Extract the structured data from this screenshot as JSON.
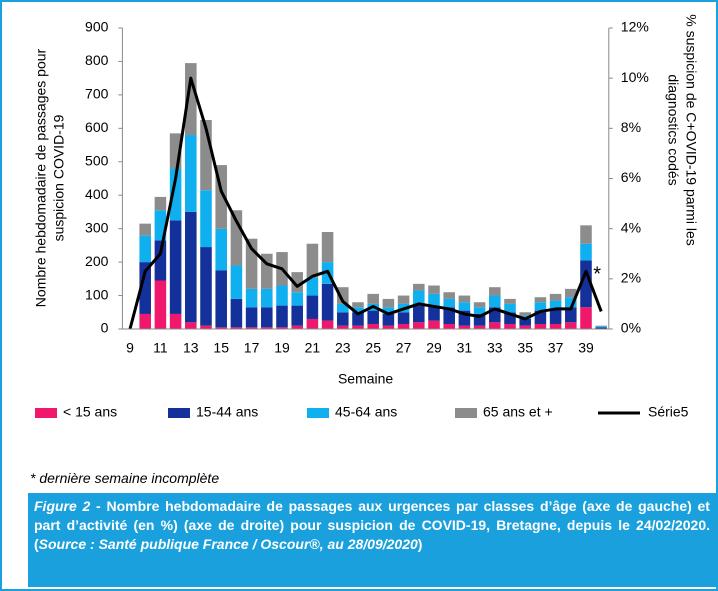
{
  "chart_data": {
    "type": "bar",
    "y_label": [
      "Nombre hebdomadaire de passages pour",
      "suspicion COVID-19"
    ],
    "y2_label": [
      "% suspicion de C+OVID-19 parmi les",
      "diagnostics codés"
    ],
    "x_label": "Semaine",
    "annotation": "*",
    "categories": [
      "9",
      null,
      "11",
      null,
      "13",
      null,
      "15",
      null,
      "17",
      null,
      "19",
      null,
      "21",
      null,
      "23",
      null,
      "25",
      null,
      "27",
      null,
      "29",
      null,
      "31",
      null,
      "33",
      null,
      "35",
      null,
      "37",
      null,
      "39",
      null
    ],
    "series": [
      {
        "name": "< 15 ans",
        "color": "#f0186c",
        "values": [
          0,
          45,
          145,
          45,
          20,
          10,
          5,
          5,
          5,
          5,
          5,
          10,
          30,
          25,
          10,
          10,
          15,
          10,
          15,
          20,
          25,
          15,
          10,
          10,
          20,
          15,
          10,
          15,
          15,
          20,
          65,
          0
        ]
      },
      {
        "name": "15-44 ans",
        "color": "#14309a",
        "values": [
          0,
          155,
          120,
          280,
          330,
          235,
          170,
          85,
          60,
          60,
          65,
          60,
          70,
          110,
          40,
          40,
          40,
          35,
          35,
          50,
          45,
          50,
          45,
          35,
          45,
          35,
          20,
          40,
          45,
          45,
          140,
          5
        ]
      },
      {
        "name": "45-64 ans",
        "color": "#10b0f0",
        "values": [
          0,
          80,
          90,
          155,
          230,
          170,
          125,
          100,
          55,
          55,
          60,
          40,
          55,
          65,
          25,
          15,
          20,
          20,
          25,
          45,
          35,
          25,
          25,
          20,
          35,
          25,
          10,
          25,
          25,
          30,
          50,
          3
        ]
      },
      {
        "name": "65 ans et +",
        "color": "#8c8c8c",
        "values": [
          0,
          35,
          40,
          105,
          215,
          210,
          190,
          165,
          150,
          105,
          100,
          60,
          100,
          90,
          50,
          15,
          30,
          25,
          25,
          20,
          25,
          20,
          20,
          15,
          25,
          15,
          10,
          15,
          20,
          25,
          55,
          2
        ]
      },
      {
        "name": "Série5",
        "color": "#000000",
        "type": "line",
        "axis": "y2",
        "values": [
          0,
          2.3,
          3.0,
          6.0,
          10.0,
          8.0,
          5.5,
          4.3,
          3.2,
          2.6,
          2.4,
          1.7,
          2.1,
          2.3,
          1.1,
          0.6,
          0.9,
          0.6,
          0.8,
          1.0,
          0.9,
          0.8,
          0.6,
          0.5,
          0.8,
          0.6,
          0.4,
          0.7,
          0.8,
          0.8,
          2.3,
          0.7
        ]
      }
    ],
    "stacked": true,
    "ylim": [
      0,
      900
    ],
    "yticks": [
      0,
      100,
      200,
      300,
      400,
      500,
      600,
      700,
      800,
      900
    ],
    "y2lim": [
      0,
      12
    ],
    "y2ticks": [
      {
        "value": 0,
        "label": "0%"
      },
      {
        "value": 2,
        "label": "2%"
      },
      {
        "value": 4,
        "label": "4%"
      },
      {
        "value": 6,
        "label": "6%"
      },
      {
        "value": 8,
        "label": "8%"
      },
      {
        "value": 10,
        "label": "10%"
      },
      {
        "value": 12,
        "label": "12%"
      }
    ],
    "legend": "bottom"
  },
  "note": "* dernière semaine incomplète",
  "caption": [
    "Figure 2",
    " - Nombre hebdomadaire de passages aux urgences par classes d’âge (axe de gauche) et part d’activité (en %) (axe de droite) pour suspicion de COVID-19, Bretagne, depuis le 24/02/2020. (",
    "Source : Santé publique France / Oscour®, au 28/09/2020",
    ")"
  ]
}
